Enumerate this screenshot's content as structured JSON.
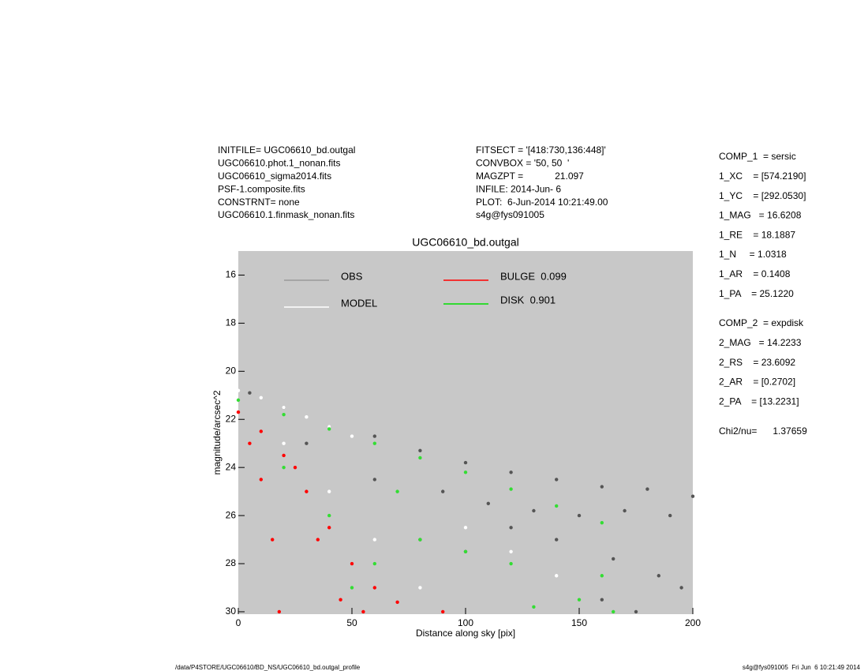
{
  "header": {
    "left": [
      "INITFILE= UGC06610_bd.outgal",
      "UGC06610.phot.1_nonan.fits",
      "UGC06610_sigma2014.fits",
      "PSF-1.composite.fits",
      "CONSTRNT= none",
      "UGC06610.1.finmask_nonan.fits"
    ],
    "middle": [
      "FITSECT = '[418:730,136:448]'",
      "CONVBOX = '50, 50  '",
      "MAGZPT =            21.097",
      "INFILE: 2014-Jun- 6",
      "PLOT:  6-Jun-2014 10:21:49.00",
      "s4g@fys091005"
    ],
    "comp1": [
      "COMP_1  = sersic",
      "1_XC    = [574.2190]",
      "1_YC    = [292.0530]",
      "1_MAG   = 16.6208",
      "1_RE    = 18.1887",
      "1_N     = 1.0318",
      "1_AR    = 0.1408",
      "1_PA    = 25.1220"
    ],
    "comp2": [
      "COMP_2  = expdisk",
      "2_MAG   = 14.2233",
      "2_RS    = 23.6092",
      "2_AR    = [0.2702]",
      "2_PA    = [13.2231]"
    ],
    "chi": "Chi2/nu=      1.37659"
  },
  "footer": {
    "left": "/data/P4STORE/UGC06610/BD_NS/UGC06610_bd.outgal_profile",
    "right": "s4g@fys091005  Fri Jun  6 10:21:49 2014"
  },
  "chart_data": {
    "type": "scatter",
    "title": "UGC06610_bd.outgal",
    "x_label": "Distance along sky [pix]",
    "y_label": "magnitude/arcsec^2",
    "xlim": [
      0,
      200
    ],
    "xticks": [
      0,
      50,
      100,
      150,
      200
    ],
    "ylim": [
      30.1,
      15
    ],
    "yticks": [
      16,
      18,
      20,
      22,
      24,
      26,
      28,
      30
    ],
    "grid": false,
    "series": [
      {
        "name": "OBS",
        "color": "#555555",
        "legend_color": "#999999",
        "x": [
          5,
          20,
          40,
          60,
          80,
          100,
          120,
          140,
          160,
          180,
          200,
          30,
          60,
          90,
          110,
          130,
          150,
          170,
          190,
          140,
          165,
          185,
          160,
          175,
          120,
          100,
          80,
          195
        ],
        "y": [
          20.9,
          21.5,
          22.3,
          22.7,
          23.3,
          23.8,
          24.2,
          24.5,
          24.8,
          24.9,
          25.2,
          23,
          24.5,
          25,
          25.5,
          25.8,
          26,
          25.8,
          26,
          27,
          27.8,
          28.5,
          29.5,
          30,
          26.5,
          27.5,
          27,
          29
        ]
      },
      {
        "name": "MODEL",
        "color": "#ffffff",
        "legend_color": "#ffffff",
        "x": [
          0,
          10,
          20,
          30,
          40,
          50,
          20,
          40,
          60,
          80,
          100,
          120,
          140
        ],
        "y": [
          20.8,
          21.1,
          21.5,
          21.9,
          22.3,
          22.7,
          23,
          25,
          27,
          29,
          26.5,
          27.5,
          28.5
        ]
      },
      {
        "name": "BULGE  0.099",
        "color": "#ff0000",
        "legend_color": "#ff0000",
        "x": [
          0,
          5,
          10,
          15,
          18,
          20,
          30,
          40,
          50,
          60,
          70,
          90,
          10,
          25,
          35,
          45,
          55
        ],
        "y": [
          21.7,
          23,
          24.5,
          27,
          30,
          23.5,
          25,
          26.5,
          28,
          29,
          29.6,
          30,
          22.5,
          24,
          27,
          29.5,
          30
        ]
      },
      {
        "name": "DISK  0.901",
        "color": "#33dd33",
        "legend_color": "#00e000",
        "x": [
          0,
          20,
          40,
          60,
          80,
          100,
          120,
          140,
          160,
          160,
          150,
          165,
          120,
          100,
          80,
          60,
          50,
          40,
          20,
          130,
          70
        ],
        "y": [
          21.2,
          21.8,
          22.4,
          23,
          23.6,
          24.2,
          24.9,
          25.6,
          26.3,
          28.5,
          29.5,
          30,
          28,
          27.5,
          27,
          28,
          29,
          26,
          24,
          29.8,
          25
        ]
      }
    ]
  }
}
